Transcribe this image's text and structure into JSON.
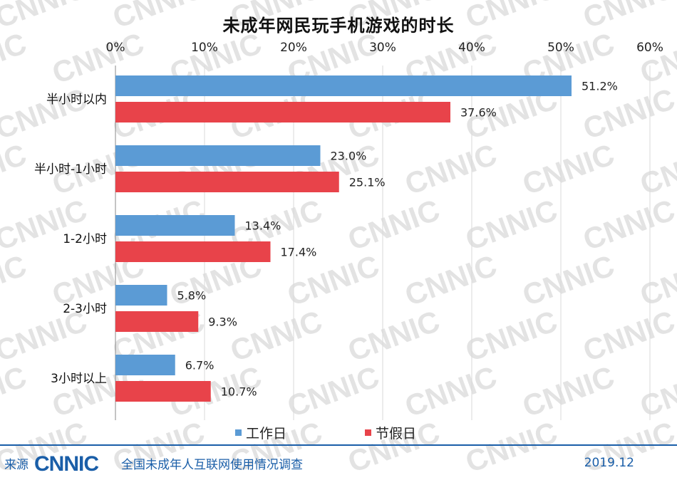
{
  "watermark_text": "CNNIC",
  "chart_data": {
    "type": "bar",
    "orientation": "horizontal",
    "title": "未成年网民玩手机游戏的时长",
    "categories": [
      "半小时以内",
      "半小时-1小时",
      "1-2小时",
      "2-3小时",
      "3小时以上"
    ],
    "series": [
      {
        "name": "工作日",
        "color": "#5b9bd5",
        "values": [
          51.2,
          23.0,
          13.4,
          5.8,
          6.7
        ]
      },
      {
        "name": "节假日",
        "color": "#e8434a",
        "values": [
          37.6,
          25.1,
          17.4,
          9.3,
          10.7
        ]
      }
    ],
    "value_labels": [
      [
        "51.2%",
        "23.0%",
        "13.4%",
        "5.8%",
        "6.7%"
      ],
      [
        "37.6%",
        "25.1%",
        "17.4%",
        "9.3%",
        "10.7%"
      ]
    ],
    "xlim": [
      0,
      60
    ],
    "xticks": [
      "0%",
      "10%",
      "20%",
      "30%",
      "40%",
      "50%",
      "60%"
    ],
    "axis_position": "top",
    "grid": true,
    "legend_position": "bottom"
  },
  "footer": {
    "source_label": "来源",
    "logo_text": "CNNIC",
    "description": "全国未成年人互联网使用情况调查",
    "date": "2019.12"
  }
}
